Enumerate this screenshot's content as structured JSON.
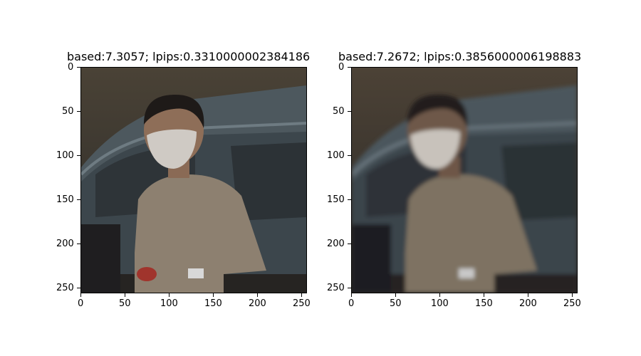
{
  "panels": [
    {
      "title": "based:7.3057; lpips:0.3310000002384186",
      "image_description": "person in face mask and beige t-shirt in front of a car (sharp)",
      "x_ticks": [
        "0",
        "50",
        "100",
        "150",
        "200",
        "250"
      ],
      "y_ticks": [
        "0",
        "50",
        "100",
        "150",
        "200",
        "250"
      ]
    },
    {
      "title": "based:7.2672; lpips:0.3856000006198883",
      "image_description": "person in face mask and beige t-shirt in front of a car (blurred reconstruction)",
      "x_ticks": [
        "0",
        "50",
        "100",
        "150",
        "200",
        "250"
      ],
      "y_ticks": [
        "0",
        "50",
        "100",
        "150",
        "200",
        "250"
      ]
    }
  ]
}
